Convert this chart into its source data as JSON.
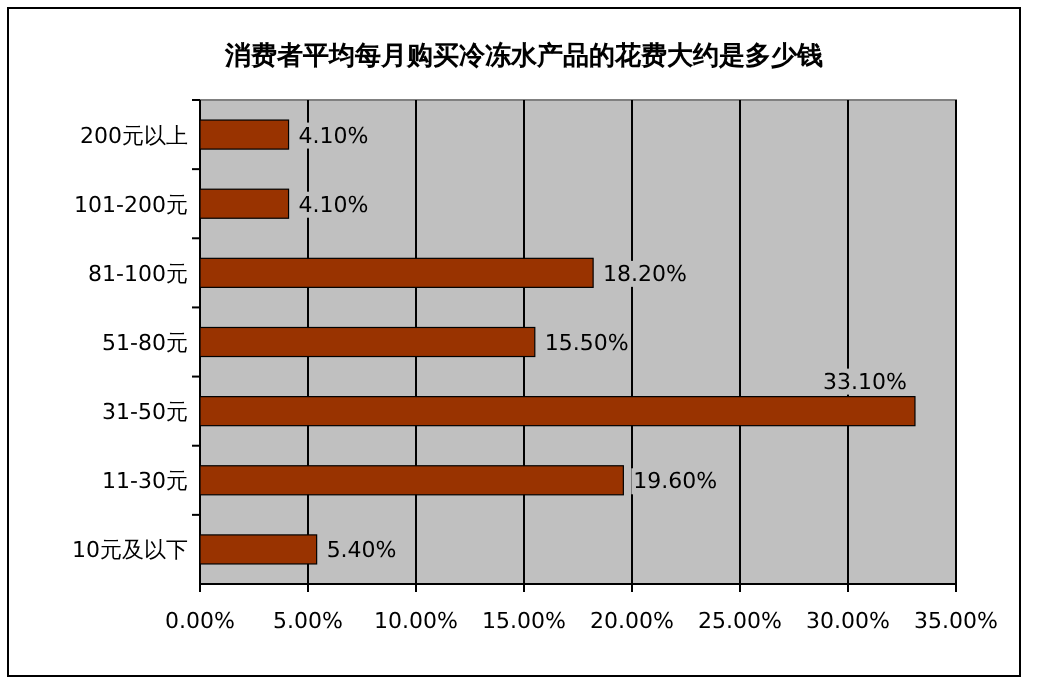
{
  "chart_data": {
    "type": "bar",
    "orientation": "horizontal",
    "title": "消费者平均每月购买冷冻水产品的花费大约是多少钱",
    "categories": [
      "200元以上",
      "101-200元",
      "81-100元",
      "51-80元",
      "31-50元",
      "11-30元",
      "10元及以下"
    ],
    "values": [
      4.1,
      4.1,
      18.2,
      15.5,
      33.1,
      19.6,
      5.4
    ],
    "value_labels": [
      "4.10%",
      "4.10%",
      "18.20%",
      "15.50%",
      "33.10%",
      "19.60%",
      "5.40%"
    ],
    "color": "#993300",
    "xlim": [
      0,
      35
    ],
    "xticks": [
      {
        "value": 0,
        "label": "0.00%"
      },
      {
        "value": 5,
        "label": "5.00%"
      },
      {
        "value": 10,
        "label": "10.00%"
      },
      {
        "value": 15,
        "label": "15.00%"
      },
      {
        "value": 20,
        "label": "20.00%"
      },
      {
        "value": 25,
        "label": "25.00%"
      },
      {
        "value": 30,
        "label": "30.00%"
      },
      {
        "value": 35,
        "label": "35.00%"
      }
    ],
    "grid": "x"
  }
}
